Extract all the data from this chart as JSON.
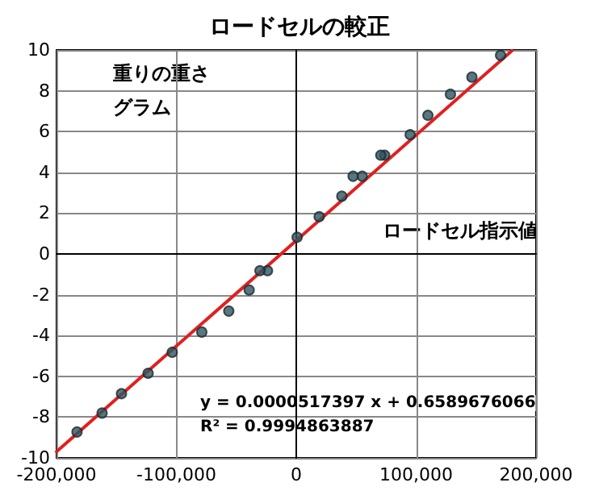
{
  "chart_data": {
    "type": "scatter",
    "title": "ロードセルの較正",
    "xlabel": "ロードセル指示値",
    "ylabel": "重りの重さグラム",
    "annotations": [
      "y = 0.0000517397 x + 0.6589676066",
      "R² = 0.9994863887"
    ],
    "series": [
      {
        "color": "#2f5560",
        "marker": "circle",
        "x": [
          170400,
          146500,
          128600,
          109800,
          95000,
          73700,
          70500,
          55000,
          47400,
          38000,
          19100,
          700,
          -24000,
          -30300,
          -39300,
          -56300,
          -78800,
          -103500,
          -123600,
          -145800,
          -162000,
          -182900
        ],
        "values": [
          9.74,
          8.67,
          7.83,
          6.8,
          5.85,
          4.84,
          4.84,
          3.81,
          3.81,
          2.83,
          1.83,
          0.82,
          -0.82,
          -0.82,
          -1.77,
          -2.8,
          -3.83,
          -4.82,
          -5.85,
          -6.85,
          -7.8,
          -8.73
        ]
      },
      {
        "type": "line",
        "color": "#e02020",
        "marker": "none",
        "line_style": "solid",
        "x": [
          -200000,
          180000
        ],
        "values": [
          -9.69,
          9.97
        ]
      }
    ],
    "xlim": [
      -200000,
      200000
    ],
    "xticks": [
      {
        "value": -200000,
        "label": "-200,000"
      },
      {
        "value": -100000,
        "label": "-100,000"
      },
      0,
      {
        "value": 100000,
        "label": "100,000"
      },
      {
        "value": 200000,
        "label": "200,000"
      }
    ],
    "ylim": [
      -10,
      10
    ],
    "yticks": [
      -10,
      -8,
      -6,
      -4,
      -2,
      0,
      2,
      4,
      6,
      8,
      10
    ],
    "grid": true
  }
}
